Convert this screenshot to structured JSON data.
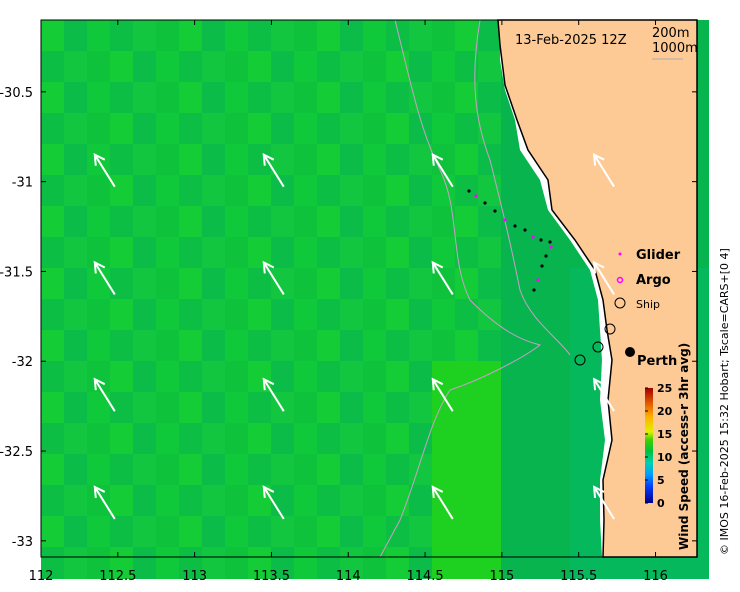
{
  "title": "13-Feb-2025 12Z",
  "isobaths": [
    "200m",
    "1000m"
  ],
  "legend": {
    "glider": "Glider",
    "argo": "Argo",
    "ship": "Ship"
  },
  "place": "Perth",
  "colorbar": {
    "label": "Wind Speed (access-r 3hr avg)",
    "ticks": [
      "0",
      "5",
      "10",
      "15",
      "20",
      "25"
    ],
    "range": [
      0,
      25
    ]
  },
  "credit": "© IMOS 16-Feb-2025 15:32 Hobart; Tscale=CARS+[0 4]",
  "x_ticks": [
    "112",
    "112.5",
    "113",
    "113.5",
    "114",
    "114.5",
    "115",
    "115.5",
    "116"
  ],
  "y_ticks": [
    "-30.5",
    "-31",
    "-31.5",
    "-32",
    "-32.5",
    "-33"
  ],
  "colors": {
    "land": "#fdca96",
    "wind": "#0fc23c",
    "glider": "#ff00ff"
  },
  "chart_data": {
    "type": "map",
    "xlim": [
      112,
      116.27
    ],
    "ylim": [
      -33.09,
      -30.1
    ],
    "wind_arrows": {
      "lons": [
        112.35,
        113.45,
        114.55,
        115.6
      ],
      "lats": [
        -30.85,
        -31.45,
        -32.1,
        -32.7
      ],
      "direction": "from SSE",
      "speed_kn": 11
    }
  }
}
